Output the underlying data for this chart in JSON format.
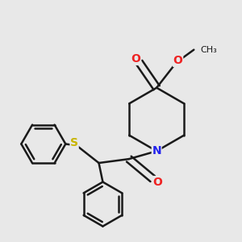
{
  "background_color": "#e8e8e8",
  "bond_color": "#1a1a1a",
  "bond_width": 1.8,
  "N_color": "#2222ee",
  "O_color": "#ee2222",
  "S_color": "#c8b400",
  "figsize": [
    3.0,
    3.0
  ],
  "dpi": 100,
  "xlim": [
    0.0,
    3.0
  ],
  "ylim": [
    0.0,
    3.0
  ]
}
